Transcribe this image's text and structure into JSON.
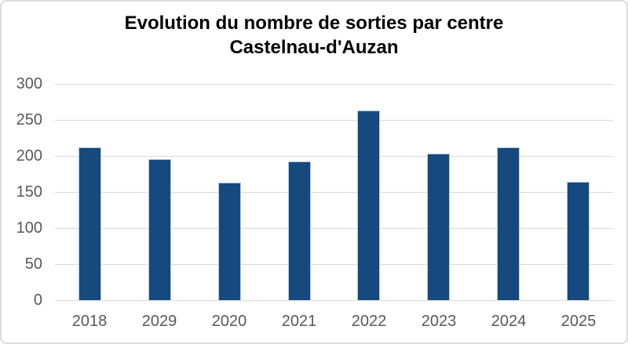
{
  "chart": {
    "title_line1": "Evolution du nombre de sorties par centre",
    "title_line2": "Castelnau-d'Auzan"
  },
  "chart_data": {
    "type": "bar",
    "title": "Evolution du nombre de sorties par centre Castelnau-d'Auzan",
    "categories": [
      "2018",
      "2029",
      "2020",
      "2021",
      "2022",
      "2023",
      "2024",
      "2025"
    ],
    "values": [
      212,
      196,
      163,
      192,
      263,
      203,
      212,
      164
    ],
    "xlabel": "",
    "ylabel": "",
    "ylim": [
      0,
      300
    ],
    "ytick_step": 50,
    "yticks": [
      0,
      50,
      100,
      150,
      200,
      250,
      300
    ],
    "grid": true,
    "legend": "none",
    "colors": {
      "bar_fill": "#16497e",
      "bar_border": "#bccbdd",
      "gridline": "#d9d9d9",
      "tick_label": "#595959",
      "title_text": "#000000",
      "frame_border": "#dcdcdc",
      "background": "#ffffff"
    }
  }
}
